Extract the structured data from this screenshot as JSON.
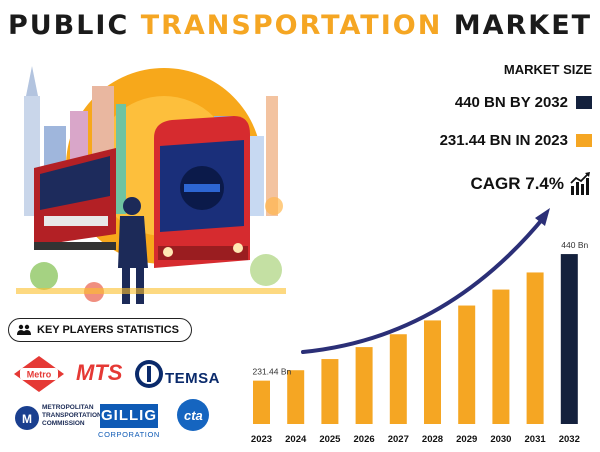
{
  "title": {
    "part1": "PUBLIC",
    "part2": "TRANSPORTATION",
    "part3": "MARKET"
  },
  "market_size_label": "MARKET SIZE",
  "stats": [
    {
      "text": "440 BN BY 2032",
      "color": "#14213d"
    },
    {
      "text": "231.44 BN IN 2023",
      "color": "#f5a623"
    }
  ],
  "cagr": "CAGR 7.4%",
  "key_players": {
    "label": "KEY PLAYERS STATISTICS",
    "logos": [
      {
        "name": "metro",
        "text": "Metro"
      },
      {
        "name": "mts",
        "text": "MTS"
      },
      {
        "name": "temsa",
        "text": "TEMSA"
      },
      {
        "name": "mtc",
        "lines": [
          "METROPOLITAN",
          "TRANSPORTATION",
          "COMMISSION"
        ]
      },
      {
        "name": "gillig",
        "text": "GILLIG",
        "sub": "CORPORATION"
      },
      {
        "name": "cta",
        "text": "cta"
      }
    ]
  },
  "colors": {
    "accent": "#f5a623",
    "dark": "#14213d",
    "arrow": "#2b2f77"
  },
  "chart_data": {
    "type": "bar",
    "categories": [
      "2023",
      "2024",
      "2025",
      "2026",
      "2027",
      "2028",
      "2029",
      "2030",
      "2031",
      "2032"
    ],
    "values": [
      231.44,
      248.6,
      267.0,
      286.7,
      307.9,
      330.7,
      355.2,
      381.5,
      409.7,
      440
    ],
    "bar_colors": [
      "#f5a623",
      "#f5a623",
      "#f5a623",
      "#f5a623",
      "#f5a623",
      "#f5a623",
      "#f5a623",
      "#f5a623",
      "#f5a623",
      "#14213d"
    ],
    "data_labels": [
      {
        "index": 0,
        "text": "231.44 Bn"
      },
      {
        "index": 9,
        "text": "440 Bn"
      }
    ],
    "ylim": [
      160,
      450
    ],
    "grid": false
  }
}
